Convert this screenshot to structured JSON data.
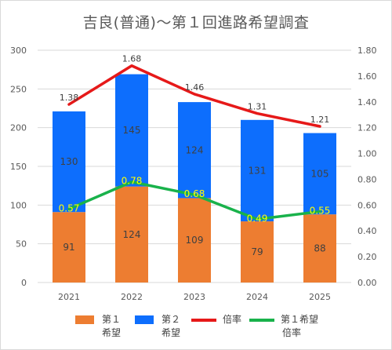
{
  "chart_data": {
    "type": "bar",
    "title": "吉良(普通)～第１回進路希望調査",
    "categories": [
      "2021",
      "2022",
      "2023",
      "2024",
      "2025"
    ],
    "series": [
      {
        "name": "第１希望",
        "type": "bar",
        "stack": "main",
        "axis": "left",
        "color": "#ed7d31",
        "values": [
          91,
          124,
          109,
          79,
          88
        ]
      },
      {
        "name": "第２希望",
        "type": "bar",
        "stack": "main",
        "axis": "left",
        "color": "#0d6efd",
        "values": [
          130,
          145,
          124,
          131,
          105
        ]
      },
      {
        "name": "倍率",
        "type": "line",
        "axis": "right",
        "color": "#e61919",
        "values": [
          1.38,
          1.68,
          1.46,
          1.31,
          1.21
        ]
      },
      {
        "name": "第１希望倍率",
        "type": "line",
        "axis": "right",
        "color": "#19b24b",
        "values": [
          0.57,
          0.78,
          0.68,
          0.49,
          0.55
        ]
      }
    ],
    "y_left": {
      "ylim": [
        0,
        300
      ],
      "ticks": [
        "0",
        "50",
        "100",
        "150",
        "200",
        "250",
        "300"
      ]
    },
    "y_right": {
      "ylim": [
        0,
        1.8
      ],
      "ticks": [
        "0.00",
        "0.20",
        "0.40",
        "0.60",
        "0.80",
        "1.00",
        "1.20",
        "1.40",
        "1.60",
        "1.80"
      ]
    },
    "grid": "horizontal",
    "legend": "bottom",
    "data_labels": {
      "bar1": [
        "91",
        "124",
        "109",
        "79",
        "88"
      ],
      "bar2": [
        "130",
        "145",
        "124",
        "131",
        "105"
      ],
      "ratio": [
        "1.38",
        "1.68",
        "1.46",
        "1.31",
        "1.21"
      ],
      "ratio1": [
        "0.57",
        "0.78",
        "0.68",
        "0.49",
        "0.55"
      ]
    },
    "legend_labels": {
      "bar1_line1": "第１",
      "bar1_line2": "希望",
      "bar2_line1": "第２",
      "bar2_line2": "希望",
      "ratio": "倍率",
      "ratio1_line1": "第１希望",
      "ratio1_line2": "倍率"
    }
  }
}
